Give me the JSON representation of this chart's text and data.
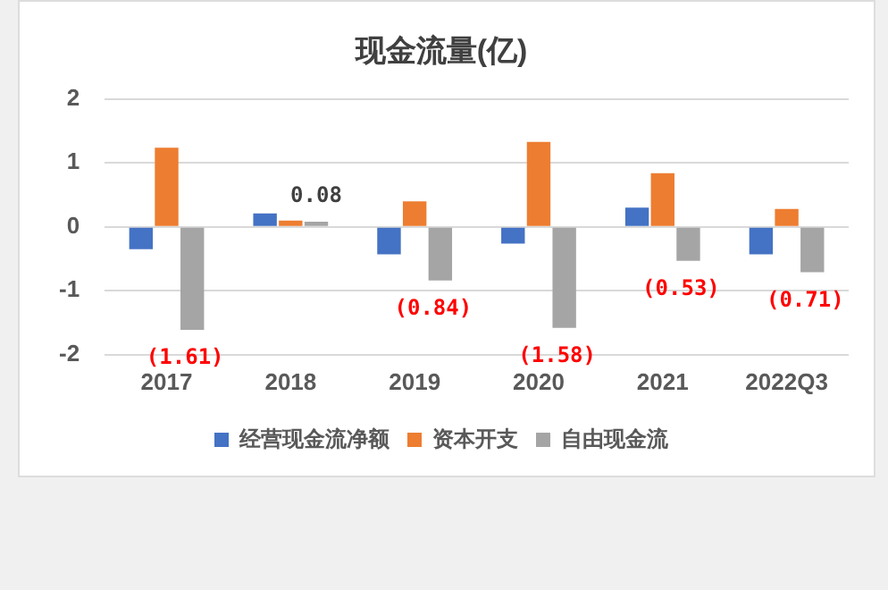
{
  "chart_data": {
    "type": "bar",
    "title": "现金流量(亿)",
    "categories": [
      "2017",
      "2018",
      "2019",
      "2020",
      "2021",
      "2022Q3"
    ],
    "series": [
      {
        "name": "经营现金流净额",
        "color": "#4472c4",
        "values": [
          -0.35,
          0.21,
          -0.43,
          -0.26,
          0.3,
          -0.43
        ]
      },
      {
        "name": "资本开支",
        "color": "#ed7d31",
        "values": [
          1.24,
          0.1,
          0.4,
          1.33,
          0.84,
          0.28
        ]
      },
      {
        "name": "自由现金流",
        "color": "#a5a5a5",
        "values": [
          -1.61,
          0.08,
          -0.84,
          -1.58,
          -0.53,
          -0.71
        ],
        "value_labels": [
          "(1.61)",
          "0.08",
          "(0.84)",
          "(1.58)",
          "(0.53)",
          "(0.71)"
        ]
      }
    ],
    "ylim": [
      -2,
      2
    ],
    "yticks": [
      -2,
      -1,
      0,
      1,
      2
    ],
    "grid": "y",
    "legend": "bottom"
  }
}
